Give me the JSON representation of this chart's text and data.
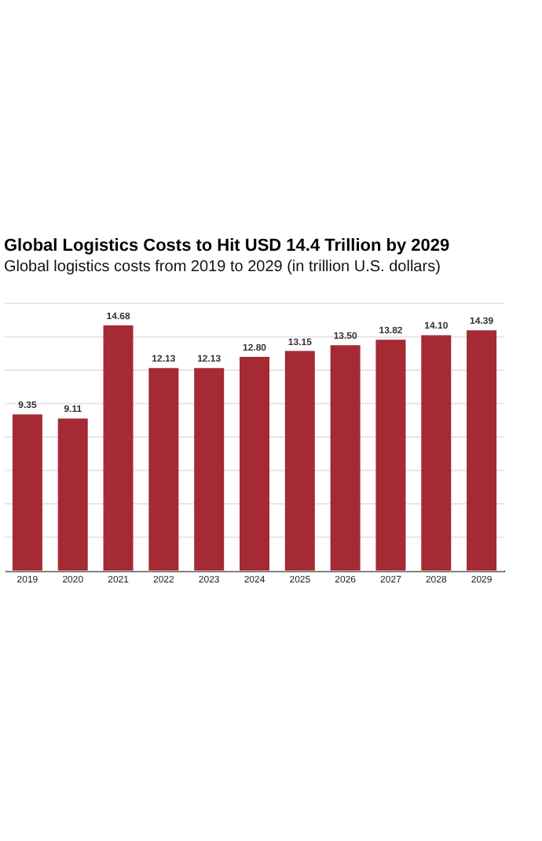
{
  "chart_data": {
    "type": "bar",
    "title": "Global Logistics Costs to Hit USD 14.4 Trillion by 2029",
    "subtitle": "Global logistics costs from 2019 to 2029 (in trillion U.S. dollars)",
    "categories": [
      "2019",
      "2020",
      "2021",
      "2022",
      "2023",
      "2024",
      "2025",
      "2026",
      "2027",
      "2028",
      "2029"
    ],
    "values": [
      9.35,
      9.11,
      14.68,
      12.13,
      12.13,
      12.8,
      13.15,
      13.5,
      13.82,
      14.1,
      14.39
    ],
    "color": "#a52a34",
    "value_labels": [
      "9.35",
      "9.11",
      "14.68",
      "12.13",
      "12.13",
      "12.80",
      "13.15",
      "13.50",
      "13.82",
      "14.10",
      "14.39"
    ],
    "grid": "y",
    "tick_labels": "x",
    "ylim": [
      0,
      16
    ],
    "yticks": [
      {
        "value": 0,
        "label": null
      },
      {
        "value": 2,
        "label": null
      },
      {
        "value": 4,
        "label": null
      },
      {
        "value": 6,
        "label": null
      },
      {
        "value": 8,
        "label": null
      },
      {
        "value": 10,
        "label": null
      },
      {
        "value": 12,
        "label": null
      },
      {
        "value": 14,
        "label": null
      },
      {
        "value": 16,
        "label": null
      }
    ]
  }
}
